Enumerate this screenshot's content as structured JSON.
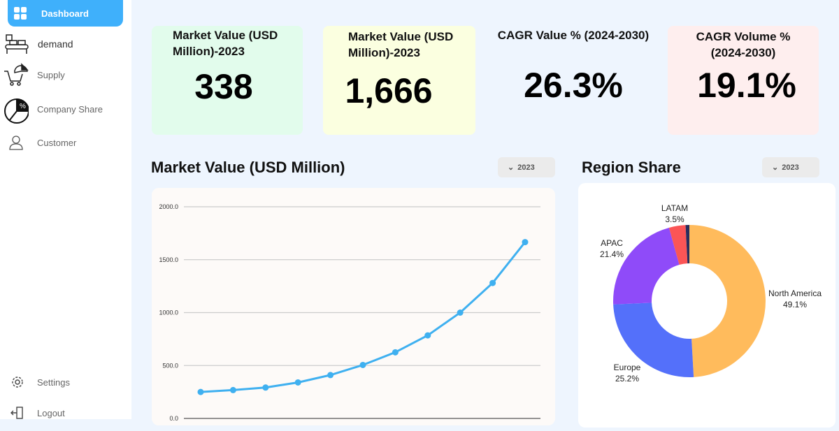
{
  "sidebar": {
    "items": [
      {
        "label": "Dashboard",
        "icon": "grid-icon"
      },
      {
        "label": "demand",
        "icon": "conveyor-icon"
      },
      {
        "label": "Supply",
        "icon": "cart-chart-icon"
      },
      {
        "label": "Company Share",
        "icon": "pie-percent-icon"
      },
      {
        "label": "Customer",
        "icon": "user-icon"
      }
    ],
    "settings": "Settings",
    "logout": "Logout"
  },
  "kpis": [
    {
      "title": "Market Value (USD Million)-2023",
      "value": "338",
      "bg": "#e2fcec"
    },
    {
      "title": "Market Value (USD Million)-2023",
      "value": "1,666",
      "bg": "#fbffe0"
    },
    {
      "title": "CAGR  Value % (2024-2030)",
      "value": "26.3%"
    },
    {
      "title": "CAGR  Volume  % (2024-2030)",
      "value": "19.1%",
      "bg": "#feeeee"
    }
  ],
  "line_section": {
    "title": "Market Value (USD Million)",
    "dropdown": "2023"
  },
  "pie_section": {
    "title": "Region Share",
    "dropdown": "2023"
  },
  "chart_data": [
    {
      "type": "line",
      "yticks": [
        "0.0",
        "500.0",
        "1000.0",
        "1500.0",
        "2000.0"
      ],
      "ylim": [
        0,
        2000
      ],
      "grid": true,
      "color": "#3fb0f0",
      "values": [
        250,
        268,
        292,
        340,
        410,
        505,
        625,
        785,
        1000,
        1280,
        1666
      ]
    },
    {
      "type": "pie",
      "donut": true,
      "slices": [
        {
          "label": "North America",
          "value": 49.1,
          "text": "49.1%",
          "color": "#ffbb5c"
        },
        {
          "label": "Europe",
          "value": 25.2,
          "text": "25.2%",
          "color": "#5470fa"
        },
        {
          "label": "APAC",
          "value": 21.4,
          "text": "21.4%",
          "color": "#8f4bf9"
        },
        {
          "label": "LATAM",
          "value": 3.5,
          "text": "3.5%",
          "color": "#fb5556"
        },
        {
          "label": "",
          "value": 0.8,
          "text": "",
          "color": "#2a2d5e"
        }
      ]
    }
  ]
}
